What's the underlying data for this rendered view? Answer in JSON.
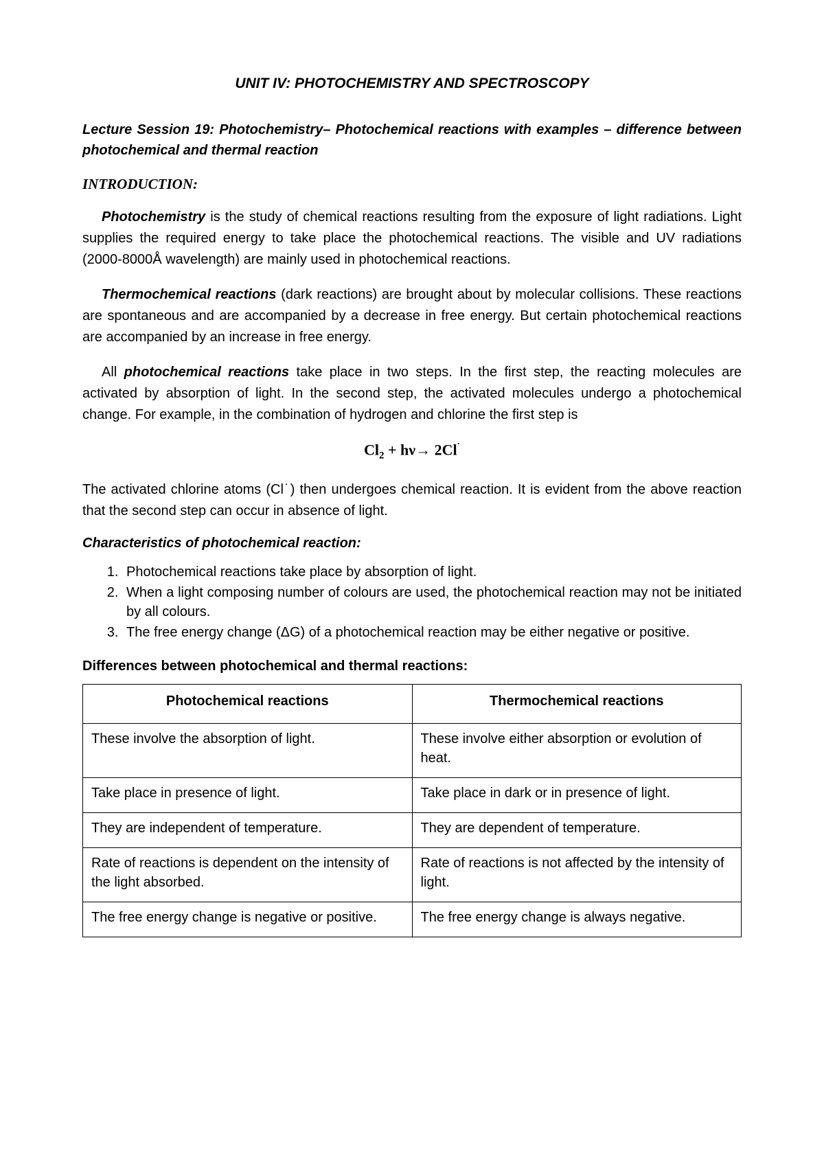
{
  "title": "UNIT IV: PHOTOCHEMISTRY AND SPECTROSCOPY",
  "lecture_heading": "Lecture Session 19: Photochemistry– Photochemical reactions with examples – difference between photochemical and thermal reaction",
  "intro_label": "INTRODUCTION:",
  "para1_lead": "Photochemistry",
  "para1_body": " is the study of chemical reactions resulting from the exposure of light radiations. Light supplies the required energy to take place the photochemical reactions. The visible and UV radiations (2000-8000Å wavelength) are mainly used in photochemical reactions.",
  "para2_lead": "Thermochemical reactions",
  "para2_body": " (dark reactions) are brought about by molecular collisions. These reactions are spontaneous and are accompanied by a decrease in free energy. But certain photochemical reactions are accompanied by an increase in free energy.",
  "para3_pre": "All  ",
  "para3_lead": "photochemical reactions",
  "para3_body": " take place in two steps.  In the first step, the reacting molecules are activated by absorption of light. In the second step, the activated molecules undergo a photochemical change. For example, in the combination of hydrogen and chlorine the first step is",
  "equation_parts": {
    "cl": "Cl",
    "sub2": "2",
    "plus_hv": "  + hν→ 2Cl",
    "dot": "˙"
  },
  "para4": "The activated chlorine atoms (Cl˙) then undergoes chemical reaction. It is evident from the above reaction that the second step can occur in absence of light.",
  "characteristics_heading": "Characteristics of photochemical reaction:",
  "characteristics": [
    "Photochemical reactions take place by absorption of light.",
    "When a light composing number of colours are used, the photochemical reaction may not be initiated by all colours.",
    "The free energy change (ΔG) of a photochemical reaction may be either negative or positive."
  ],
  "differences_heading": "Differences between photochemical and thermal reactions:",
  "table": {
    "headers": [
      "Photochemical reactions",
      "Thermochemical reactions"
    ],
    "rows": [
      [
        "These involve the absorption of light.",
        "These involve either absorption or evolution of heat."
      ],
      [
        "Take place in presence of light.",
        "Take place in dark or in presence of light."
      ],
      [
        "They are independent of temperature.",
        "They are dependent of temperature."
      ],
      [
        "Rate of reactions is dependent on the intensity of the light absorbed.",
        "Rate of reactions is not affected by the intensity of light."
      ],
      [
        "The free energy change is negative or positive.",
        "The free energy change is always negative."
      ]
    ]
  }
}
